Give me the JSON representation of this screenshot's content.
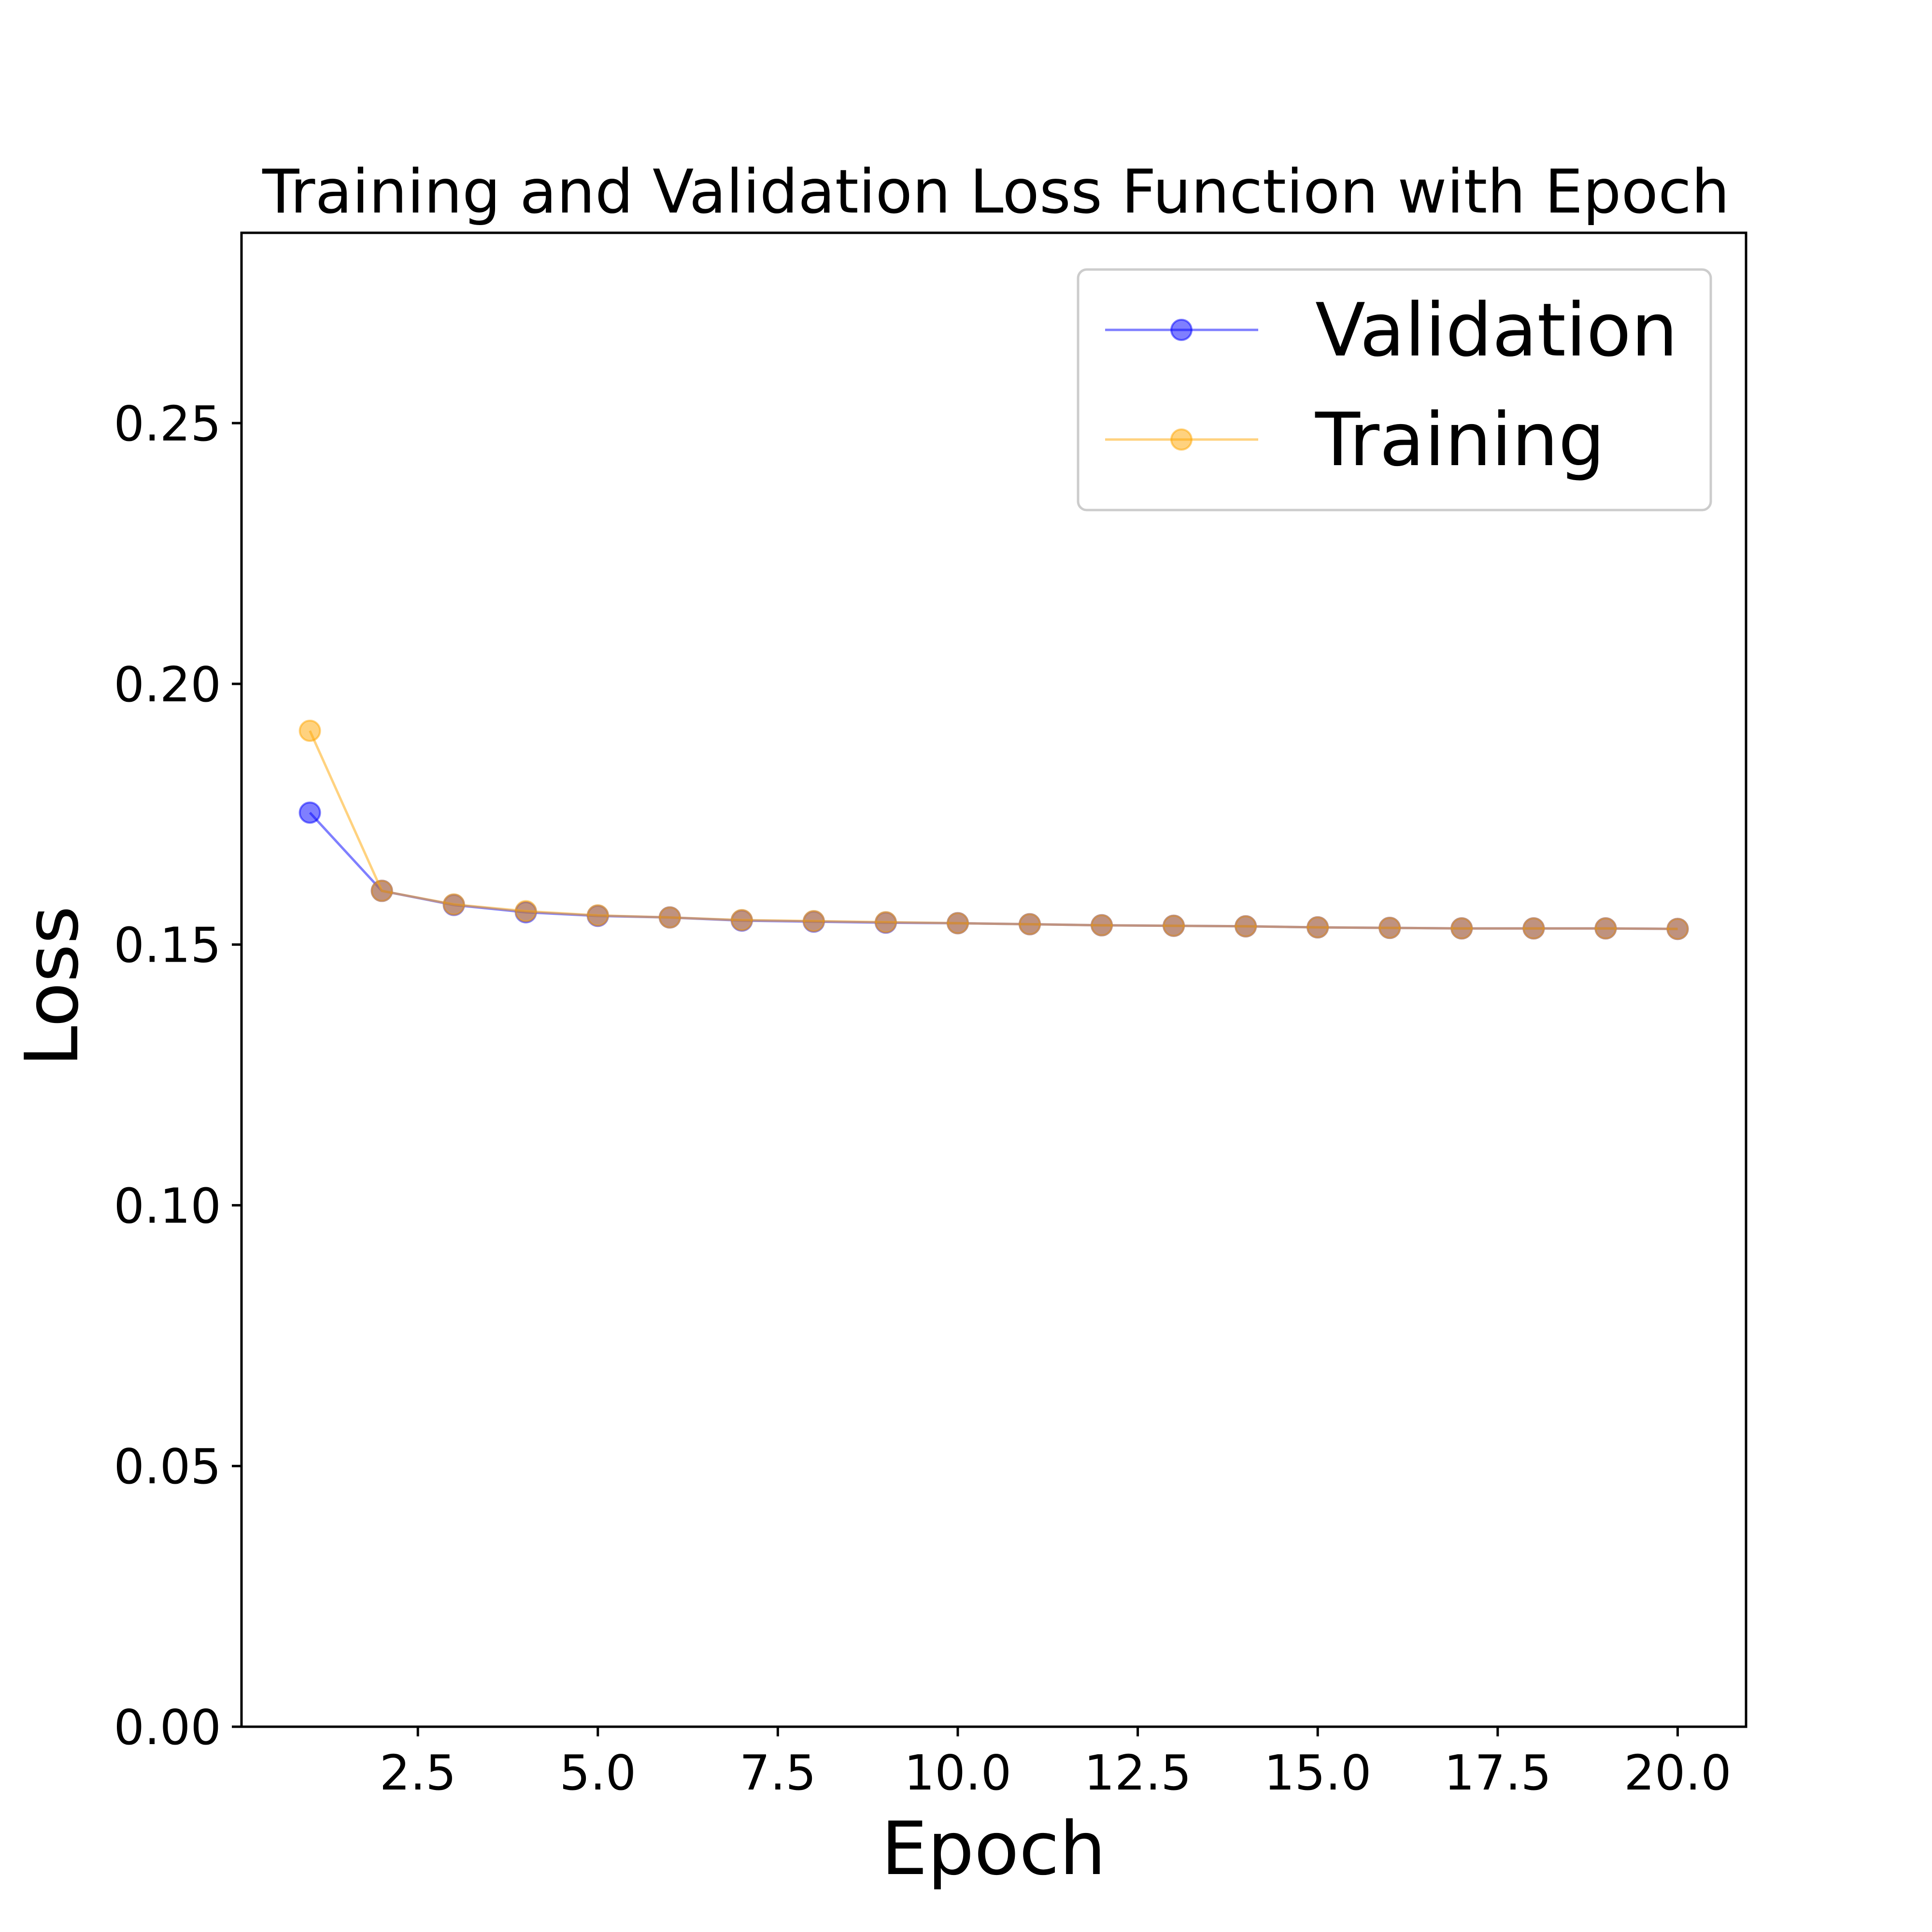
{
  "chart_data": {
    "type": "line",
    "title": "Training and Validation Loss Function with Epoch",
    "xlabel": "Epoch",
    "ylabel": "Loss",
    "xlim": [
      0.05,
      20.95
    ],
    "ylim": [
      0,
      0.2865
    ],
    "x_ticks": [
      2.5,
      5.0,
      7.5,
      10.0,
      12.5,
      15.0,
      17.5,
      20.0
    ],
    "x_tick_labels": [
      "2.5",
      "5.0",
      "7.5",
      "10.0",
      "12.5",
      "15.0",
      "17.5",
      "20.0"
    ],
    "y_ticks": [
      0.0,
      0.05,
      0.1,
      0.15,
      0.2,
      0.25
    ],
    "y_tick_labels": [
      "0.00",
      "0.05",
      "0.10",
      "0.15",
      "0.20",
      "0.25"
    ],
    "grid": false,
    "legend_position": "top-right",
    "x": [
      1,
      2,
      3,
      4,
      5,
      6,
      7,
      8,
      9,
      10,
      11,
      12,
      13,
      14,
      15,
      16,
      17,
      18,
      19,
      20
    ],
    "series": [
      {
        "name": "Validation",
        "color": "#0000ff",
        "values": [
          0.1753,
          0.1603,
          0.1576,
          0.1562,
          0.1555,
          0.1552,
          0.1546,
          0.1544,
          0.1542,
          0.1541,
          0.1539,
          0.1537,
          0.1536,
          0.1535,
          0.1533,
          0.1532,
          0.1531,
          0.1531,
          0.1531,
          0.153
        ]
      },
      {
        "name": "Training",
        "color": "#ffa500",
        "values": [
          0.191,
          0.1603,
          0.1577,
          0.1564,
          0.1556,
          0.1552,
          0.1547,
          0.1545,
          0.1543,
          0.1541,
          0.1539,
          0.1537,
          0.1536,
          0.1535,
          0.1533,
          0.1532,
          0.1531,
          0.1531,
          0.1531,
          0.153
        ]
      }
    ]
  }
}
